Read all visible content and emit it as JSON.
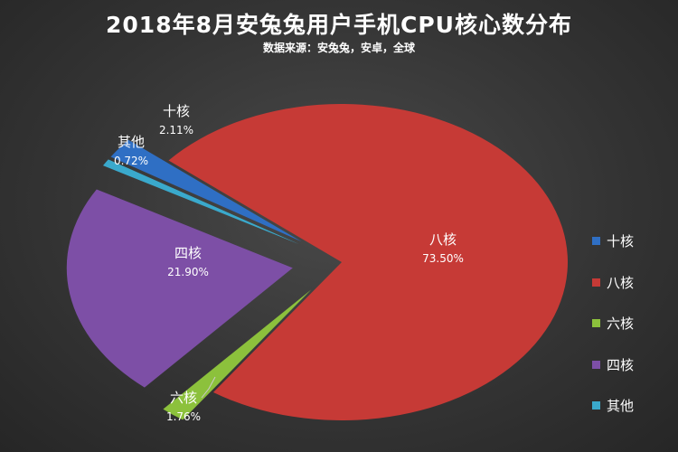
{
  "chart_data": {
    "type": "pie",
    "title": "2018年8月安兔兔用户手机CPU核心数分布",
    "subtitle": "数据来源：安兔兔，安卓，全球",
    "slices": [
      {
        "name": "十核",
        "value": 2.11,
        "label": "2.11%",
        "color": "#2f6fc4"
      },
      {
        "name": "八核",
        "value": 73.5,
        "label": "73.50%",
        "color": "#c63a36"
      },
      {
        "name": "六核",
        "value": 1.76,
        "label": "1.76%",
        "color": "#8cc13c"
      },
      {
        "name": "四核",
        "value": 21.9,
        "label": "21.90%",
        "color": "#7d4fa6"
      },
      {
        "name": "其他",
        "value": 0.72,
        "label": "0.72%",
        "color": "#3aa9cc"
      }
    ],
    "legend": "right"
  }
}
